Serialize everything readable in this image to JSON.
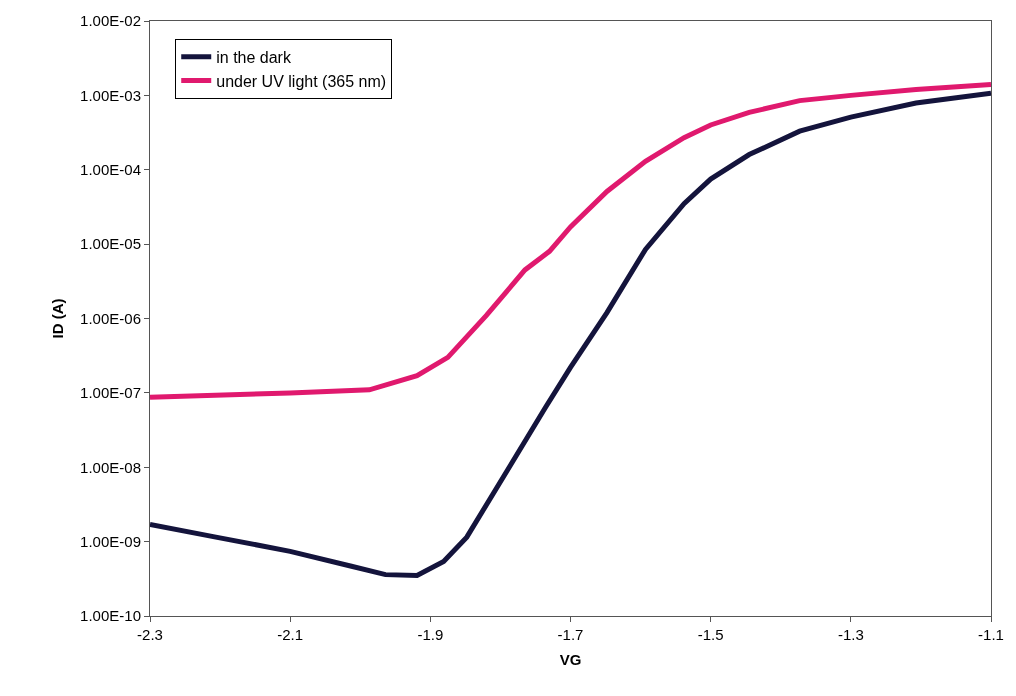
{
  "chart_data": {
    "type": "line",
    "xlabel": "VG",
    "ylabel": "ID (A)",
    "log": "y",
    "grid": false,
    "legend": "top left",
    "marker": "none",
    "line_style": "solid",
    "xlim": [
      -2.3,
      -1.1
    ],
    "xticks": [
      -2.3,
      -2.1,
      -1.9,
      -1.7,
      -1.5,
      -1.3,
      -1.1
    ],
    "ylim": [
      1e-10,
      0.01
    ],
    "yticks": [
      {
        "value": 1e-10,
        "label": "1.00E-10"
      },
      {
        "value": 1e-09,
        "label": "1.00E-09"
      },
      {
        "value": 1e-08,
        "label": "1.00E-08"
      },
      {
        "value": 1e-07,
        "label": "1.00E-07"
      },
      {
        "value": 1e-06,
        "label": "1.00E-06"
      },
      {
        "value": 1e-05,
        "label": "1.00E-05"
      },
      {
        "value": 0.0001,
        "label": "1.00E-04"
      },
      {
        "value": 0.001,
        "label": "1.00E-03"
      },
      {
        "value": 0.01,
        "label": "1.00E-02"
      }
    ],
    "series": [
      {
        "name": "in the dark",
        "color": "#14143c",
        "x": [
          -2.3,
          -2.206,
          -2.1,
          -2.014,
          -1.964,
          -1.919,
          -1.881,
          -1.848,
          -1.79,
          -1.736,
          -1.7,
          -1.648,
          -1.593,
          -1.538,
          -1.5,
          -1.445,
          -1.373,
          -1.3,
          -1.207,
          -1.1
        ],
        "values": [
          1.7e-09,
          1.15e-09,
          7.4e-10,
          4.7e-10,
          3.6e-10,
          3.5e-10,
          5.4e-10,
          1.15e-09,
          9.1e-09,
          6.3e-08,
          2.2e-07,
          1.2e-06,
          8.5e-06,
          3.5e-05,
          7.5e-05,
          0.00016,
          0.00033,
          0.00051,
          0.00079,
          0.00107
        ]
      },
      {
        "name": "under UV light (365 nm)",
        "color": "#e0196e",
        "x": [
          -2.3,
          -2.1,
          -1.987,
          -1.919,
          -1.875,
          -1.82,
          -1.765,
          -1.73,
          -1.7,
          -1.648,
          -1.593,
          -1.538,
          -1.5,
          -1.445,
          -1.373,
          -1.3,
          -1.207,
          -1.1
        ],
        "values": [
          8.7e-08,
          1e-07,
          1.1e-07,
          1.7e-07,
          3e-07,
          1.1e-06,
          4.5e-06,
          8e-06,
          1.7e-05,
          5.1e-05,
          0.00013,
          0.00027,
          0.0004,
          0.00059,
          0.00085,
          0.001,
          0.0012,
          0.0014
        ]
      }
    ]
  }
}
